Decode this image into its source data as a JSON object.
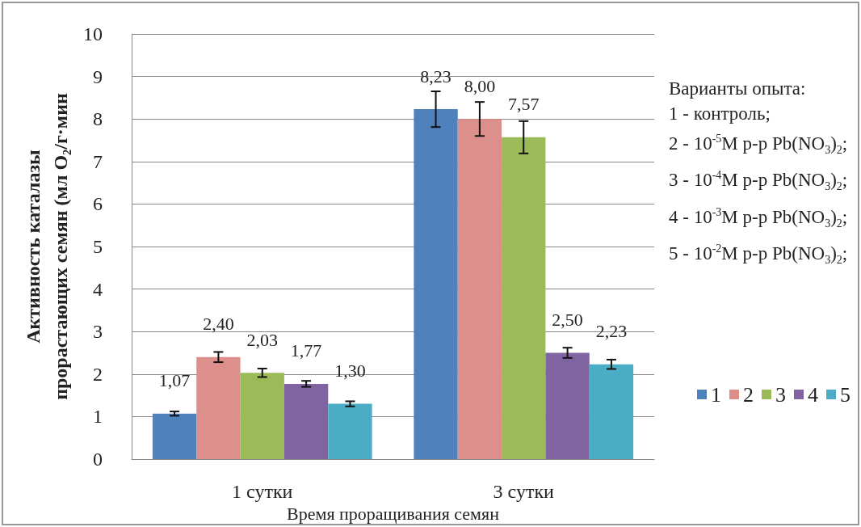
{
  "chart_data": {
    "type": "bar",
    "xlabel": "Время проращивания семян",
    "ylabel": "Активность каталазы прорастающих семян (мл O₂/г·мин",
    "categories": [
      "1 сутки",
      "3 сутки"
    ],
    "series": [
      {
        "name": "1",
        "color": "#4f81bd",
        "values": [
          1.07,
          8.23
        ],
        "value_labels": [
          "1,07",
          "8,23"
        ],
        "errors": [
          0.05,
          0.42
        ]
      },
      {
        "name": "2",
        "color": "#dd8f8c",
        "values": [
          2.4,
          8.0
        ],
        "value_labels": [
          "2,40",
          "8,00"
        ],
        "errors": [
          0.12,
          0.4
        ]
      },
      {
        "name": "3",
        "color": "#9bbb59",
        "values": [
          2.03,
          7.57
        ],
        "value_labels": [
          "2,03",
          "7,57"
        ],
        "errors": [
          0.1,
          0.38
        ]
      },
      {
        "name": "4",
        "color": "#8064a2",
        "values": [
          1.77,
          2.5
        ],
        "value_labels": [
          "1,77",
          "2,50"
        ],
        "errors": [
          0.07,
          0.12
        ]
      },
      {
        "name": "5",
        "color": "#4bacc6",
        "values": [
          1.3,
          2.23
        ],
        "value_labels": [
          "1,30",
          "2,23"
        ],
        "errors": [
          0.06,
          0.11
        ]
      }
    ],
    "ylim": [
      0,
      10
    ],
    "yticks": [
      0,
      1,
      2,
      3,
      4,
      5,
      6,
      7,
      8,
      9,
      10
    ],
    "grid": "y",
    "legend": "right",
    "annotations": [
      "Варианты опыта:",
      "1 - контроль;",
      "2 - 10$^{-5}$M р-р Pb(NO$_{3}$)$_{2}$;",
      "3 - 10$^{-4}$M р-р Pb(NO$_{3}$)$_{2}$;",
      "4 - 10$^{-3}$M р-р Pb(NO$_{3}$)$_{2}$;",
      "5 - 10$^{-2}$M р-р Pb(NO$_{3}$)$_{2}$;"
    ]
  }
}
